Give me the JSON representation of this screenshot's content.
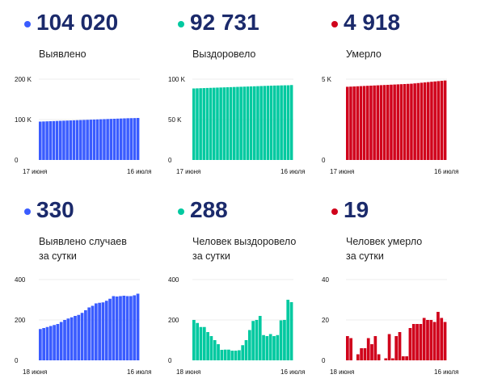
{
  "colors": {
    "blue": "#3a5cff",
    "green": "#00c9a0",
    "red": "#d0021b",
    "title": "#1b2a6b"
  },
  "chart_data": [
    {
      "type": "bar",
      "title": "104 020",
      "label": "Выявлено",
      "color": "#3a5cff",
      "yticks": [
        "0",
        "100 K",
        "200 K"
      ],
      "ylim": [
        0,
        200000
      ],
      "xlabels": [
        "17 июня",
        "16 июля"
      ],
      "values": [
        95000,
        95320,
        95640,
        95960,
        96280,
        96600,
        96920,
        97240,
        97560,
        97880,
        98200,
        98520,
        98840,
        99160,
        99480,
        99800,
        100120,
        100440,
        100760,
        101080,
        101400,
        101720,
        102040,
        102360,
        102680,
        103000,
        103330,
        103520,
        103690,
        104020
      ]
    },
    {
      "type": "bar",
      "title": "92 731",
      "label": "Выздоровело",
      "color": "#00c9a0",
      "yticks": [
        "0",
        "50 K",
        "100 K"
      ],
      "ylim": [
        0,
        100000
      ],
      "xlabels": [
        "17 июня",
        "16 июля"
      ],
      "values": [
        88500,
        88650,
        88800,
        88950,
        89100,
        89250,
        89400,
        89550,
        89700,
        89850,
        90000,
        90150,
        90300,
        90450,
        90600,
        90750,
        90900,
        91050,
        91200,
        91350,
        91500,
        91650,
        91800,
        91950,
        92100,
        92200,
        92300,
        92400,
        92443,
        92731
      ]
    },
    {
      "type": "bar",
      "title": "4 918",
      "label": "Умерло",
      "color": "#d0021b",
      "yticks": [
        "0",
        "5 K"
      ],
      "ylim": [
        0,
        5000
      ],
      "xlabels": [
        "17 июня",
        "16 июля"
      ],
      "values": [
        4530,
        4540,
        4550,
        4560,
        4570,
        4580,
        4590,
        4600,
        4610,
        4620,
        4630,
        4640,
        4650,
        4660,
        4670,
        4680,
        4690,
        4700,
        4710,
        4720,
        4740,
        4760,
        4780,
        4800,
        4820,
        4840,
        4860,
        4880,
        4900,
        4918
      ]
    },
    {
      "type": "bar",
      "title": "330",
      "label": "Выявлено случаев",
      "label2": "за сутки",
      "color": "#3a5cff",
      "yticks": [
        "0",
        "200",
        "400"
      ],
      "ylim": [
        0,
        400
      ],
      "xlabels": [
        "18 июня",
        "16 июля"
      ],
      "values": [
        155,
        160,
        165,
        170,
        175,
        180,
        190,
        200,
        207,
        213,
        220,
        225,
        235,
        248,
        262,
        270,
        282,
        285,
        287,
        295,
        305,
        318,
        316,
        318,
        320,
        318,
        318,
        322,
        330
      ]
    },
    {
      "type": "bar",
      "title": "288",
      "label": "Человек выздоровело",
      "label2": "за сутки",
      "color": "#00c9a0",
      "yticks": [
        "0",
        "200",
        "400"
      ],
      "ylim": [
        0,
        400
      ],
      "xlabels": [
        "18 июня",
        "16 июля"
      ],
      "values": [
        200,
        185,
        165,
        165,
        140,
        120,
        100,
        80,
        52,
        53,
        53,
        48,
        48,
        50,
        75,
        100,
        150,
        195,
        200,
        220,
        125,
        120,
        130,
        120,
        125,
        198,
        200,
        300,
        288
      ]
    },
    {
      "type": "bar",
      "title": "19",
      "label": "Человек умерло",
      "label2": "за сутки",
      "color": "#d0021b",
      "yticks": [
        "0",
        "20",
        "40"
      ],
      "ylim": [
        0,
        40
      ],
      "xlabels": [
        "18 июня",
        "16 июля"
      ],
      "values": [
        12,
        11,
        0,
        3,
        6,
        6,
        11,
        8,
        12,
        3,
        0,
        1,
        13,
        1,
        12,
        14,
        2,
        2,
        16,
        18,
        18,
        18,
        21,
        20,
        20,
        19,
        24,
        21,
        19
      ]
    }
  ]
}
